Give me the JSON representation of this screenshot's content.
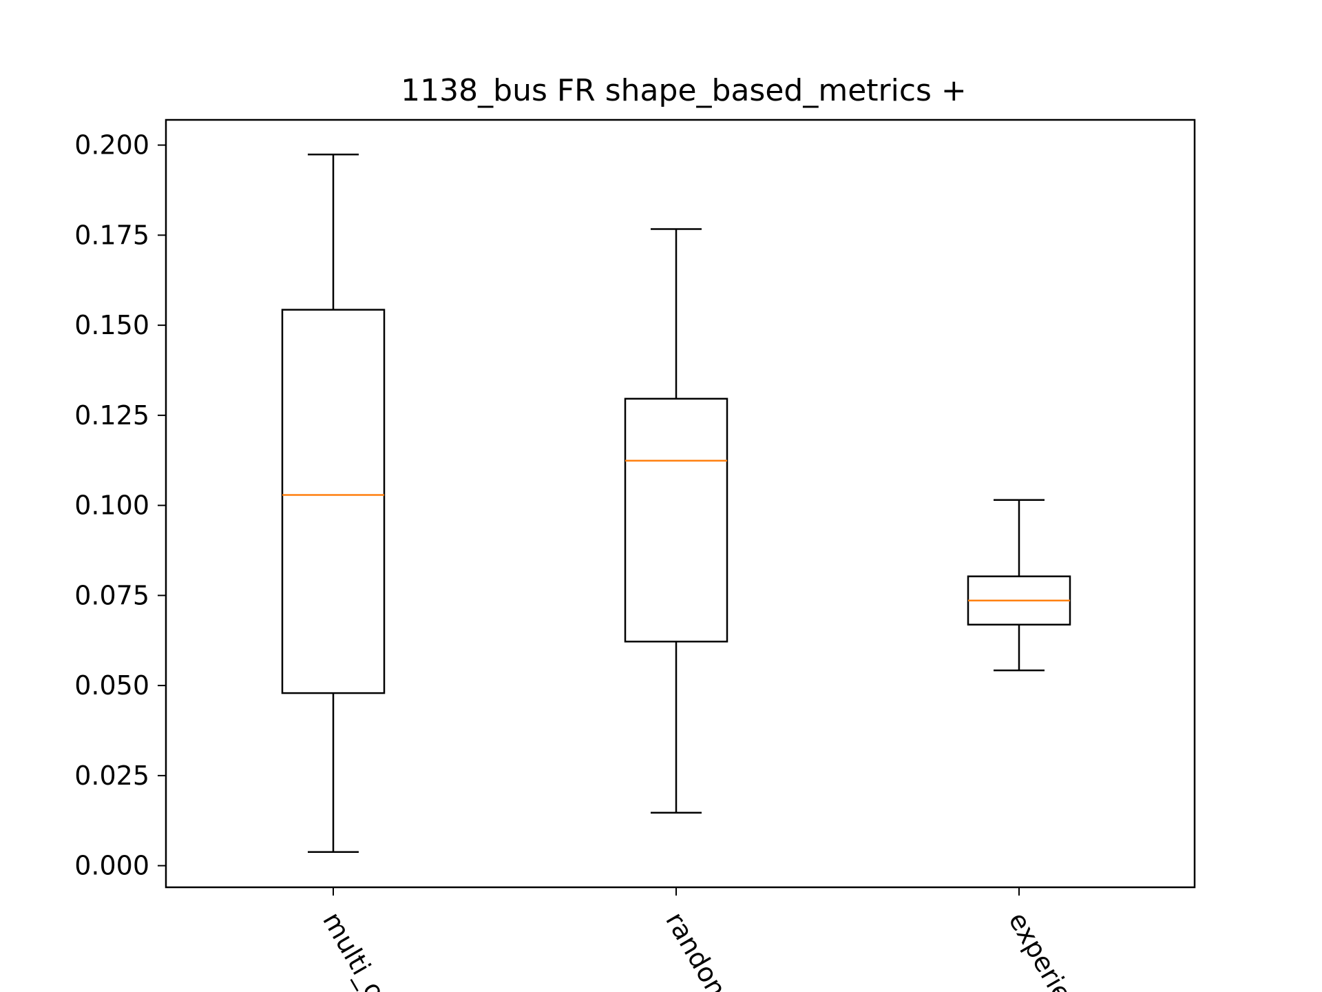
{
  "chart_data": {
    "type": "box",
    "title": "1138_bus FR shape_based_metrics +",
    "xlabel": "",
    "ylabel": "",
    "ylim": [
      -0.006,
      0.207
    ],
    "yticks": [
      0.0,
      0.025,
      0.05,
      0.075,
      0.1,
      0.125,
      0.15,
      0.175,
      0.2
    ],
    "ytick_labels": [
      "0.000",
      "0.025",
      "0.050",
      "0.075",
      "0.100",
      "0.125",
      "0.150",
      "0.175",
      "0.200"
    ],
    "categories": [
      "multi_o",
      "randon",
      "experie"
    ],
    "boxes": [
      {
        "category": "multi_o",
        "whisker_low": 0.0038,
        "q1": 0.0479,
        "median": 0.1029,
        "q3": 0.1543,
        "whisker_high": 0.1974
      },
      {
        "category": "randon",
        "whisker_low": 0.0147,
        "q1": 0.0622,
        "median": 0.1124,
        "q3": 0.1296,
        "whisker_high": 0.1767
      },
      {
        "category": "experie",
        "whisker_low": 0.0542,
        "q1": 0.0669,
        "median": 0.0736,
        "q3": 0.0803,
        "whisker_high": 0.1015
      }
    ],
    "grid": false,
    "colors": {
      "box": "#000000",
      "median": "#ff7f0e",
      "axes": "#000000",
      "background": "#ffffff"
    }
  }
}
